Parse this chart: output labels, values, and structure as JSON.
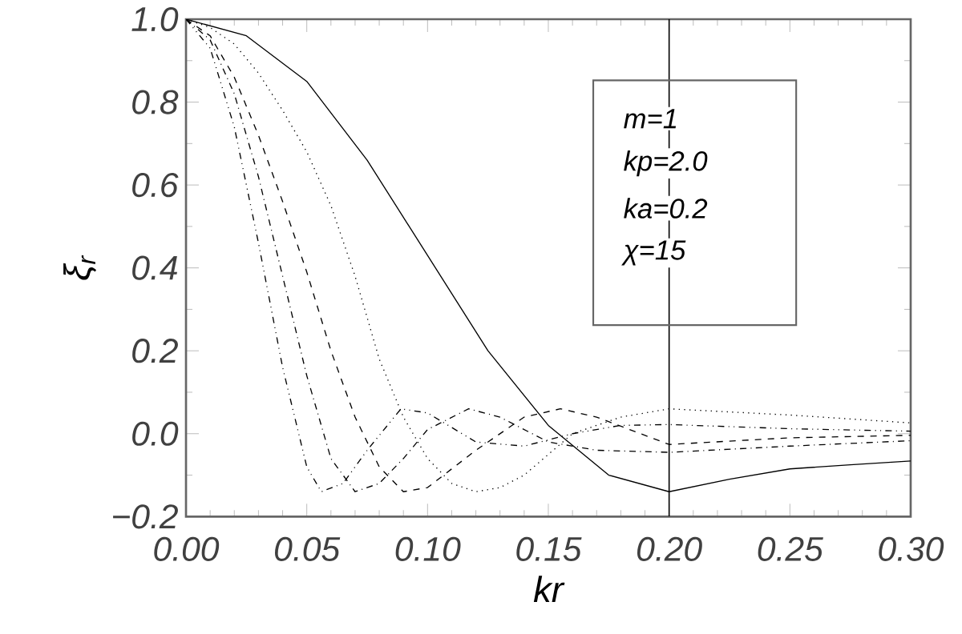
{
  "chart_data": {
    "type": "line",
    "xlabel": "kr",
    "ylabel": "ξ$_{r}$",
    "xlim": [
      0,
      0.3
    ],
    "ylim": [
      -0.2,
      1.0
    ],
    "xticks": [
      {
        "value": 0,
        "label": "0.00"
      },
      {
        "value": 0.05,
        "label": "0.05"
      },
      {
        "value": 0.1,
        "label": "0.10"
      },
      {
        "value": 0.15,
        "label": "0.15"
      },
      {
        "value": 0.2,
        "label": "0.20"
      },
      {
        "value": 0.25,
        "label": "0.25"
      },
      {
        "value": 0.3,
        "label": "0.30"
      }
    ],
    "yticks": [
      {
        "value": -0.2,
        "label": "−0.2"
      },
      {
        "value": 0,
        "label": "0.0"
      },
      {
        "value": 0.2,
        "label": "0.2"
      },
      {
        "value": 0.4,
        "label": "0.4"
      },
      {
        "value": 0.6,
        "label": "0.6"
      },
      {
        "value": 0.8,
        "label": "0.8"
      },
      {
        "value": 1.0,
        "label": "1.0"
      }
    ],
    "grid": false,
    "marker": "none",
    "annotations": [
      "m=1",
      "kp=2.0",
      "ka=0.2",
      "χ=15"
    ],
    "ref_lines": [
      {
        "axis": "x",
        "value": 0.2,
        "color": "#000000",
        "line_style": "solid"
      }
    ],
    "series": [
      {
        "color": "#000000",
        "line_style": "solid",
        "x": [
          0,
          0.025,
          0.05,
          0.075,
          0.1,
          0.125,
          0.15,
          0.175,
          0.2,
          0.225,
          0.25,
          0.275,
          0.3
        ],
        "values": [
          1.0,
          0.96,
          0.85,
          0.66,
          0.43,
          0.2,
          0.02,
          -0.1,
          -0.14,
          -0.11,
          -0.085,
          -0.075,
          -0.066
        ]
      },
      {
        "color": "#000000",
        "line_style": "dotted",
        "x": [
          0,
          0.01,
          0.02,
          0.03,
          0.04,
          0.05,
          0.06,
          0.07,
          0.08,
          0.09,
          0.1,
          0.11,
          0.12,
          0.13,
          0.14,
          0.16,
          0.18,
          0.2,
          0.25,
          0.3
        ],
        "values": [
          1.0,
          0.98,
          0.94,
          0.87,
          0.78,
          0.68,
          0.55,
          0.38,
          0.18,
          0.04,
          -0.06,
          -0.12,
          -0.14,
          -0.13,
          -0.1,
          0.0,
          0.04,
          0.06,
          0.045,
          0.026
        ]
      },
      {
        "color": "#000000",
        "line_style": "dashed",
        "x": [
          0,
          0.01,
          0.02,
          0.03,
          0.04,
          0.05,
          0.06,
          0.07,
          0.08,
          0.09,
          0.1,
          0.12,
          0.14,
          0.155,
          0.17,
          0.2,
          0.25,
          0.3
        ],
        "values": [
          1.0,
          0.96,
          0.86,
          0.72,
          0.56,
          0.39,
          0.2,
          0.04,
          -0.08,
          -0.14,
          -0.13,
          -0.04,
          0.04,
          0.06,
          0.04,
          -0.026,
          -0.01,
          -0.004
        ]
      },
      {
        "color": "#000000",
        "line_style": "dashdot",
        "x": [
          0,
          0.01,
          0.02,
          0.03,
          0.04,
          0.05,
          0.06,
          0.07,
          0.08,
          0.09,
          0.1,
          0.117,
          0.13,
          0.15,
          0.17,
          0.2,
          0.25,
          0.3
        ],
        "values": [
          1.0,
          0.95,
          0.82,
          0.62,
          0.38,
          0.14,
          -0.06,
          -0.14,
          -0.12,
          -0.06,
          0.01,
          0.06,
          0.04,
          -0.02,
          -0.04,
          -0.045,
          -0.03,
          -0.017
        ]
      },
      {
        "color": "#000000",
        "line_style": "dashdotdotted",
        "x": [
          0,
          0.01,
          0.02,
          0.03,
          0.04,
          0.05,
          0.056,
          0.065,
          0.075,
          0.089,
          0.1,
          0.12,
          0.14,
          0.16,
          0.18,
          0.2,
          0.25,
          0.3
        ],
        "values": [
          1.0,
          0.93,
          0.74,
          0.46,
          0.16,
          -0.08,
          -0.14,
          -0.12,
          -0.04,
          0.06,
          0.05,
          -0.02,
          -0.03,
          0.0,
          0.02,
          0.022,
          0.012,
          0.006
        ]
      }
    ]
  }
}
